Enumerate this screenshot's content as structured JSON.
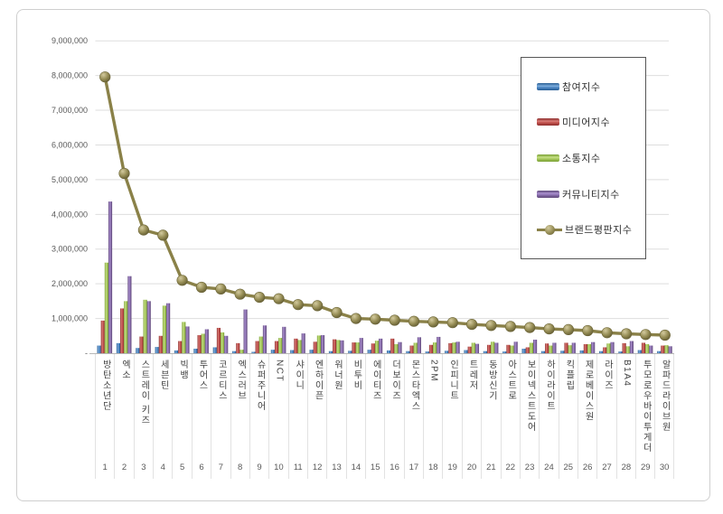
{
  "chart_data": {
    "type": "bar+line",
    "title": "",
    "legend_position": "top-right",
    "categories": [
      "방탄소년단",
      "엑소",
      "스트레이 키즈",
      "세븐틴",
      "빅뱅",
      "투어스",
      "코르티스",
      "엑스러브",
      "슈퍼주니어",
      "NCT",
      "샤이니",
      "엔하이픈",
      "워너원",
      "비투비",
      "에이티즈",
      "더보이즈",
      "몬스타엑스",
      "2PM",
      "인피니트",
      "트레저",
      "동방신기",
      "아스트로",
      "보이넥스트도어",
      "하이라이트",
      "킥플립",
      "제로베이스원",
      "라이즈",
      "B1A4",
      "투모로우바이투게더",
      "알파드라이브원"
    ],
    "ranks": [
      "1",
      "2",
      "3",
      "4",
      "5",
      "6",
      "7",
      "8",
      "9",
      "10",
      "11",
      "12",
      "13",
      "14",
      "15",
      "16",
      "17",
      "18",
      "19",
      "20",
      "21",
      "22",
      "23",
      "24",
      "25",
      "26",
      "27",
      "28",
      "29",
      "30"
    ],
    "series": [
      {
        "name": "참여지수",
        "type": "bar",
        "color": "#4e87c4",
        "color_light": "#7faede",
        "color_dark": "#275d93",
        "values": [
          220000,
          290000,
          150000,
          180000,
          80000,
          130000,
          170000,
          60000,
          40000,
          100000,
          90000,
          100000,
          60000,
          70000,
          100000,
          80000,
          60000,
          50000,
          70000,
          90000,
          60000,
          50000,
          130000,
          60000,
          70000,
          80000,
          60000,
          50000,
          90000,
          60000
        ]
      },
      {
        "name": "미디어지수",
        "type": "bar",
        "color": "#c1504c",
        "color_light": "#d97b76",
        "color_dark": "#8e2f2e",
        "values": [
          940000,
          1290000,
          480000,
          500000,
          350000,
          520000,
          730000,
          290000,
          350000,
          350000,
          420000,
          330000,
          400000,
          310000,
          280000,
          420000,
          220000,
          240000,
          290000,
          190000,
          240000,
          240000,
          170000,
          280000,
          300000,
          260000,
          170000,
          290000,
          300000,
          220000
        ]
      },
      {
        "name": "소통지수",
        "type": "bar",
        "color": "#a8c95e",
        "color_light": "#c6e084",
        "color_dark": "#79a033",
        "values": [
          2610000,
          1500000,
          1540000,
          1370000,
          900000,
          560000,
          600000,
          100000,
          480000,
          440000,
          380000,
          510000,
          380000,
          310000,
          360000,
          260000,
          300000,
          310000,
          310000,
          300000,
          330000,
          220000,
          300000,
          220000,
          230000,
          260000,
          280000,
          200000,
          260000,
          230000
        ]
      },
      {
        "name": "커뮤니티지수",
        "type": "bar",
        "color": "#8a6fae",
        "color_light": "#ab90d0",
        "color_dark": "#5e4778",
        "values": [
          4370000,
          2220000,
          1500000,
          1440000,
          770000,
          690000,
          500000,
          1260000,
          800000,
          760000,
          570000,
          520000,
          370000,
          440000,
          420000,
          320000,
          460000,
          470000,
          330000,
          270000,
          300000,
          330000,
          390000,
          300000,
          300000,
          320000,
          320000,
          350000,
          220000,
          200000
        ]
      },
      {
        "name": "브랜드평판지수",
        "type": "line",
        "color": "#8a8148",
        "marker_light": "#d3ca9e",
        "marker_mid": "#948b53",
        "marker_dark": "#5c5630",
        "values": [
          7960000,
          5180000,
          3550000,
          3400000,
          2100000,
          1900000,
          1850000,
          1700000,
          1610000,
          1570000,
          1400000,
          1370000,
          1170000,
          1000000,
          980000,
          950000,
          920000,
          900000,
          880000,
          830000,
          800000,
          770000,
          740000,
          700000,
          680000,
          650000,
          590000,
          560000,
          540000,
          520000
        ]
      }
    ],
    "y_axis": {
      "min": 0,
      "max": 9000000,
      "step": 1000000,
      "zero_label": "-",
      "grid": true,
      "tick_labels": [
        "-",
        "1,000,000",
        "2,000,000",
        "3,000,000",
        "4,000,000",
        "5,000,000",
        "6,000,000",
        "7,000,000",
        "8,000,000",
        "9,000,000"
      ]
    }
  },
  "colors": {
    "gridline": "#dedede",
    "axis_line": "#b7b7b7",
    "frame_border": "#cfcfcf",
    "legend_border": "#565656",
    "label_text": "#595959",
    "category_text": "#3f3f3f"
  }
}
